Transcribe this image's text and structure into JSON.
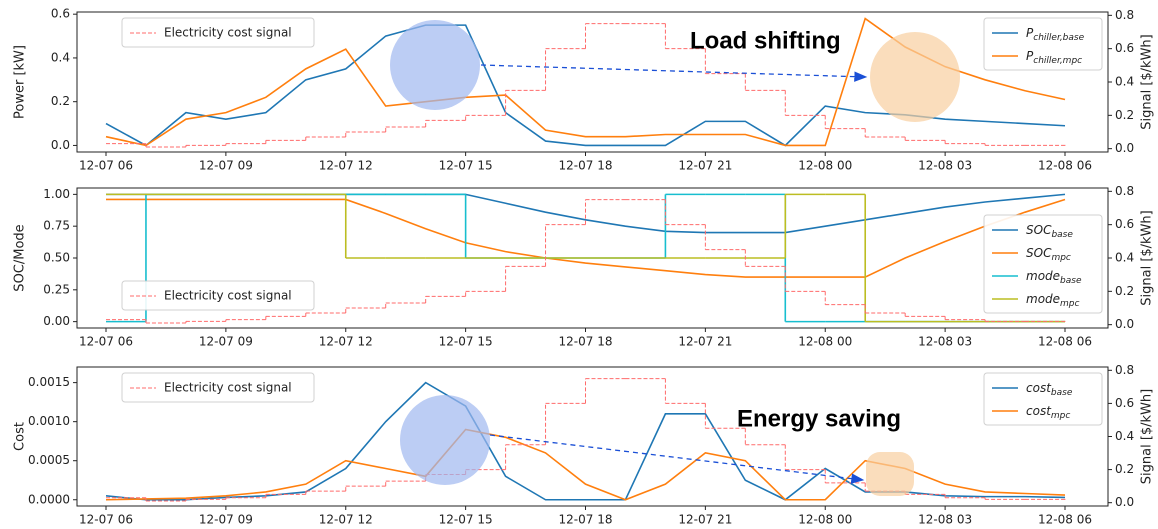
{
  "chart_data": [
    {
      "type": "line",
      "ylabel": "Power [kW]",
      "y2label": "Signal [$/kWh]",
      "annotation": "Load shifting",
      "x": [
        "12-07 06",
        "12-07 07",
        "12-07 08",
        "12-07 09",
        "12-07 10",
        "12-07 11",
        "12-07 12",
        "12-07 13",
        "12-07 14",
        "12-07 15",
        "12-07 16",
        "12-07 17",
        "12-07 18",
        "12-07 19",
        "12-07 20",
        "12-07 21",
        "12-07 22",
        "12-07 23",
        "12-08 00",
        "12-08 01",
        "12-08 02",
        "12-08 03",
        "12-08 04",
        "12-08 05",
        "12-08 06"
      ],
      "xticks": [
        "12-07 06",
        "12-07 09",
        "12-07 12",
        "12-07 15",
        "12-07 18",
        "12-07 21",
        "12-08 00",
        "12-08 03",
        "12-08 06"
      ],
      "ylim": [
        -0.03,
        0.61
      ],
      "yticks": [
        {
          "value": 0,
          "label": "0.0"
        },
        0.2,
        0.4,
        0.6
      ],
      "y2lim": [
        -0.02,
        0.82
      ],
      "y2ticks": [
        {
          "value": 0,
          "label": "0.0"
        },
        0.2,
        0.4,
        0.6,
        0.8
      ],
      "legend_loc": "upper right",
      "signal_legend_loc": "upper left",
      "series": [
        {
          "name": "P",
          "subscript": "chiller,base",
          "color": "#1f77b4",
          "values": [
            0.1,
            0.0,
            0.15,
            0.12,
            0.15,
            0.3,
            0.35,
            0.5,
            0.55,
            0.55,
            0.15,
            0.02,
            0.0,
            0.0,
            0.0,
            0.11,
            0.11,
            0.0,
            0.18,
            0.15,
            0.14,
            0.12,
            0.11,
            0.1,
            0.09
          ]
        },
        {
          "name": "P",
          "subscript": "chiller,mpc",
          "color": "#ff7f0e",
          "values": [
            0.04,
            0.0,
            0.12,
            0.15,
            0.22,
            0.35,
            0.44,
            0.18,
            0.2,
            0.22,
            0.23,
            0.07,
            0.04,
            0.04,
            0.05,
            0.05,
            0.05,
            0.0,
            0.0,
            0.58,
            0.45,
            0.36,
            0.3,
            0.25,
            0.21
          ]
        },
        {
          "name": "Electricity cost signal",
          "color": "#ff6b6b",
          "axis": "y2",
          "linestyle": "dashed",
          "drawstyle": "steps-post",
          "values": [
            0.03,
            0.01,
            0.02,
            0.03,
            0.05,
            0.07,
            0.1,
            0.13,
            0.17,
            0.2,
            0.35,
            0.6,
            0.75,
            0.75,
            0.6,
            0.45,
            0.35,
            0.2,
            0.12,
            0.07,
            0.05,
            0.03,
            0.02,
            0.02,
            0.02
          ]
        }
      ]
    },
    {
      "type": "line",
      "ylabel": "SOC/Mode",
      "y2label": "Signal [$/kWh]",
      "x": [
        "12-07 06",
        "12-07 07",
        "12-07 08",
        "12-07 09",
        "12-07 10",
        "12-07 11",
        "12-07 12",
        "12-07 13",
        "12-07 14",
        "12-07 15",
        "12-07 16",
        "12-07 17",
        "12-07 18",
        "12-07 19",
        "12-07 20",
        "12-07 21",
        "12-07 22",
        "12-07 23",
        "12-08 00",
        "12-08 01",
        "12-08 02",
        "12-08 03",
        "12-08 04",
        "12-08 05",
        "12-08 06"
      ],
      "xticks": [
        "12-07 06",
        "12-07 09",
        "12-07 12",
        "12-07 15",
        "12-07 18",
        "12-07 21",
        "12-08 00",
        "12-08 03",
        "12-08 06"
      ],
      "ylim": [
        -0.05,
        1.05
      ],
      "yticks": [
        {
          "value": 0,
          "label": "0.00"
        },
        0.25,
        {
          "value": 0.5,
          "label": "0.50"
        },
        0.75,
        {
          "value": 1,
          "label": "1.00"
        }
      ],
      "y2lim": [
        -0.02,
        0.82
      ],
      "y2ticks": [
        {
          "value": 0,
          "label": "0.0"
        },
        0.2,
        0.4,
        0.6,
        0.8
      ],
      "legend_loc": "center right",
      "signal_legend_loc": "lower left",
      "series": [
        {
          "name": "SOC",
          "subscript": "base",
          "color": "#1f77b4",
          "values": [
            1.0,
            1.0,
            1.0,
            1.0,
            1.0,
            1.0,
            1.0,
            1.0,
            1.0,
            1.0,
            0.93,
            0.86,
            0.8,
            0.75,
            0.71,
            0.7,
            0.7,
            0.7,
            0.75,
            0.8,
            0.85,
            0.9,
            0.94,
            0.97,
            1.0
          ]
        },
        {
          "name": "SOC",
          "subscript": "mpc",
          "color": "#ff7f0e",
          "values": [
            0.96,
            0.96,
            0.96,
            0.96,
            0.96,
            0.96,
            0.96,
            0.85,
            0.73,
            0.62,
            0.55,
            0.5,
            0.46,
            0.43,
            0.4,
            0.37,
            0.35,
            0.35,
            0.35,
            0.35,
            0.5,
            0.63,
            0.75,
            0.86,
            0.96
          ]
        },
        {
          "name": "mode",
          "subscript": "base",
          "color": "#17becf",
          "drawstyle": "steps-post",
          "values": [
            0,
            1,
            1,
            1,
            1,
            1,
            1,
            1,
            1,
            0.5,
            0.5,
            0.5,
            0.5,
            0.5,
            1,
            1,
            1,
            0,
            0,
            0,
            0,
            0,
            0,
            0,
            0
          ]
        },
        {
          "name": "mode",
          "subscript": "mpc",
          "color": "#bcbd22",
          "drawstyle": "steps-post",
          "values": [
            1,
            1,
            1,
            1,
            1,
            1,
            0.5,
            0.5,
            0.5,
            0.5,
            0.5,
            0.5,
            0.5,
            0.5,
            0.5,
            0.5,
            0.5,
            1,
            1,
            0,
            0,
            0,
            0,
            0,
            0
          ]
        },
        {
          "name": "Electricity cost signal",
          "color": "#ff6b6b",
          "axis": "y2",
          "linestyle": "dashed",
          "drawstyle": "steps-post",
          "values": [
            0.03,
            0.01,
            0.02,
            0.03,
            0.05,
            0.07,
            0.1,
            0.13,
            0.17,
            0.2,
            0.35,
            0.6,
            0.75,
            0.75,
            0.6,
            0.45,
            0.35,
            0.2,
            0.12,
            0.07,
            0.05,
            0.03,
            0.02,
            0.02,
            0.02
          ]
        }
      ]
    },
    {
      "type": "line",
      "ylabel": "Cost",
      "y2label": "Signal [$/kWh]",
      "annotation": "Energy saving",
      "x": [
        "12-07 06",
        "12-07 07",
        "12-07 08",
        "12-07 09",
        "12-07 10",
        "12-07 11",
        "12-07 12",
        "12-07 13",
        "12-07 14",
        "12-07 15",
        "12-07 16",
        "12-07 17",
        "12-07 18",
        "12-07 19",
        "12-07 20",
        "12-07 21",
        "12-07 22",
        "12-07 23",
        "12-08 00",
        "12-08 01",
        "12-08 02",
        "12-08 03",
        "12-08 04",
        "12-08 05",
        "12-08 06"
      ],
      "xticks": [
        "12-07 06",
        "12-07 09",
        "12-07 12",
        "12-07 15",
        "12-07 18",
        "12-07 21",
        "12-08 00",
        "12-08 03",
        "12-08 06"
      ],
      "ylim": [
        -8e-05,
        0.0017
      ],
      "yticks": [
        {
          "value": 0,
          "label": "0.0000"
        },
        0.0005,
        {
          "value": 0.001,
          "label": "0.0010"
        },
        0.0015
      ],
      "y2lim": [
        -0.02,
        0.82
      ],
      "y2ticks": [
        {
          "value": 0,
          "label": "0.0"
        },
        0.2,
        0.4,
        0.6,
        0.8
      ],
      "legend_loc": "upper right",
      "signal_legend_loc": "upper left",
      "series": [
        {
          "name": "cost",
          "subscript": "base",
          "color": "#1f77b4",
          "values": [
            5e-05,
            0.0,
            0.0,
            3e-05,
            5e-05,
            0.0001,
            0.0004,
            0.001,
            0.0015,
            0.0012,
            0.0003,
            0.0,
            0.0,
            0.0,
            0.0011,
            0.0011,
            0.00025,
            0.0,
            0.0004,
            0.0001,
            0.0001,
            5e-05,
            4e-05,
            4e-05,
            3e-05
          ]
        },
        {
          "name": "cost",
          "subscript": "mpc",
          "color": "#ff7f0e",
          "values": [
            0.0,
            1e-05,
            2e-05,
            5e-05,
            0.0001,
            0.0002,
            0.0005,
            0.0004,
            0.0003,
            0.0009,
            0.0008,
            0.0006,
            0.0002,
            0.0,
            0.0002,
            0.0006,
            0.0005,
            0.0,
            0.0,
            0.0005,
            0.0004,
            0.0002,
            0.0001,
            8e-05,
            6e-05
          ]
        },
        {
          "name": "Electricity cost signal",
          "color": "#ff6b6b",
          "axis": "y2",
          "linestyle": "dashed",
          "drawstyle": "steps-post",
          "values": [
            0.03,
            0.01,
            0.02,
            0.03,
            0.05,
            0.07,
            0.1,
            0.13,
            0.17,
            0.2,
            0.35,
            0.6,
            0.75,
            0.75,
            0.6,
            0.45,
            0.35,
            0.2,
            0.12,
            0.07,
            0.05,
            0.03,
            0.02,
            0.02,
            0.02
          ]
        }
      ]
    }
  ]
}
